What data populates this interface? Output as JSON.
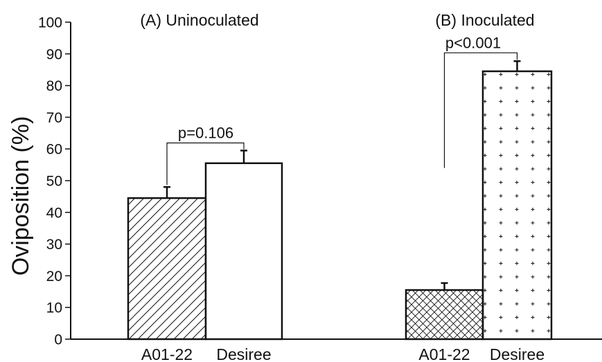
{
  "chart_data": {
    "type": "bar",
    "ylabel": "Oviposition (%)",
    "ylim": [
      0,
      100
    ],
    "yticks": [
      0,
      10,
      20,
      30,
      40,
      50,
      60,
      70,
      80,
      90,
      100
    ],
    "grid": false,
    "groups": [
      {
        "title": "(A) Uninoculated",
        "bars": [
          {
            "category": "A01-22",
            "value": 44.5,
            "error": 3.5,
            "pattern": "diagonal-hatch"
          },
          {
            "category": "Desiree",
            "value": 55.5,
            "error": 4.0,
            "pattern": "none"
          }
        ],
        "p_value": "p=0.106"
      },
      {
        "title": "(B) Inoculated",
        "bars": [
          {
            "category": "A01-22",
            "value": 15.5,
            "error": 2.2,
            "pattern": "crosshatch"
          },
          {
            "category": "Desiree",
            "value": 84.5,
            "error": 3.2,
            "pattern": "plus-dots"
          }
        ],
        "p_value": "p<0.001"
      }
    ]
  }
}
